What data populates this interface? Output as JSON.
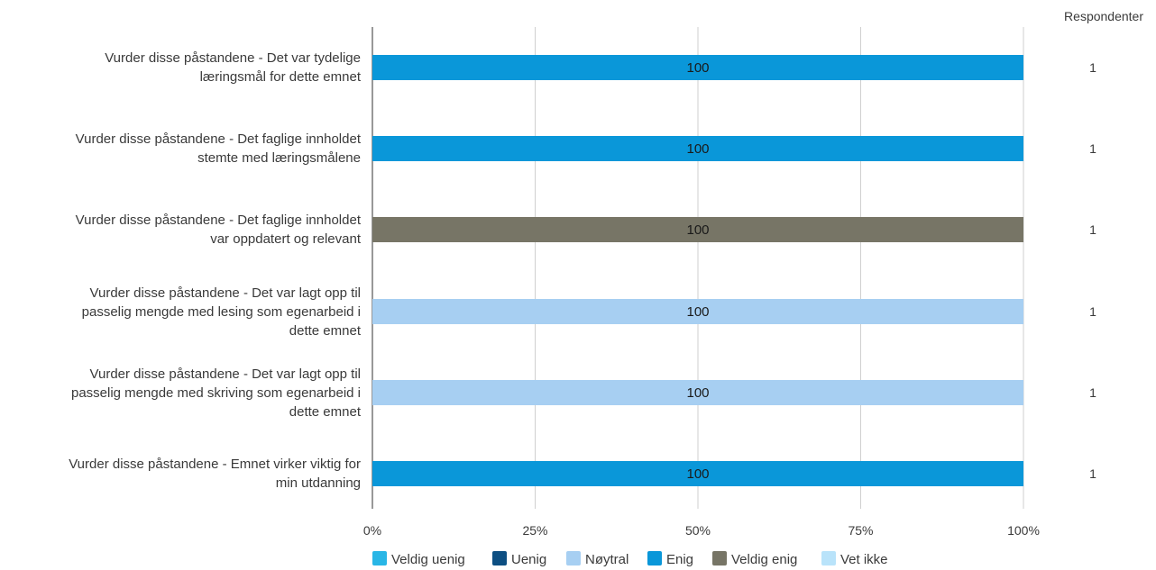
{
  "respondents_header": "Respondenter",
  "chart_data": {
    "type": "bar",
    "orientation": "horizontal",
    "stacked": true,
    "categories": [
      "Vurder disse påstandene  - Det var tydelige læringsmål for dette emnet",
      "Vurder disse påstandene  - Det faglige innholdet stemte med læringsmålene",
      "Vurder disse påstandene  - Det faglige innholdet var oppdatert og relevant",
      "Vurder disse påstandene  - Det var lagt opp til passelig mengde med lesing som egenarbeid i dette emnet",
      "Vurder disse påstandene  - Det var lagt opp til passelig mengde med skriving som egenarbeid i dette emnet",
      "Vurder disse påstandene  - Emnet virker viktig for min utdanning"
    ],
    "series": [
      {
        "name": "Veldig uenig",
        "color": "#29b6e6",
        "values": [
          0,
          0,
          0,
          0,
          0,
          0
        ]
      },
      {
        "name": "Uenig",
        "color": "#0d4f82",
        "values": [
          0,
          0,
          0,
          0,
          0,
          0
        ]
      },
      {
        "name": "Nøytral",
        "color": "#a7cff2",
        "values": [
          0,
          0,
          0,
          100,
          100,
          0
        ]
      },
      {
        "name": "Enig",
        "color": "#0a97d9",
        "values": [
          100,
          100,
          0,
          0,
          0,
          100
        ]
      },
      {
        "name": "Veldig enig",
        "color": "#777566",
        "values": [
          0,
          0,
          100,
          0,
          0,
          0
        ]
      },
      {
        "name": "Vet ikke",
        "color": "#b9e3fa",
        "values": [
          0,
          0,
          0,
          0,
          0,
          0
        ]
      }
    ],
    "respondents": [
      1,
      1,
      1,
      1,
      1,
      1
    ],
    "xlim": [
      0,
      100
    ],
    "x_ticks": [
      "0%",
      "25%",
      "50%",
      "75%",
      "100%"
    ],
    "grid": true,
    "legend_position": "bottom"
  }
}
